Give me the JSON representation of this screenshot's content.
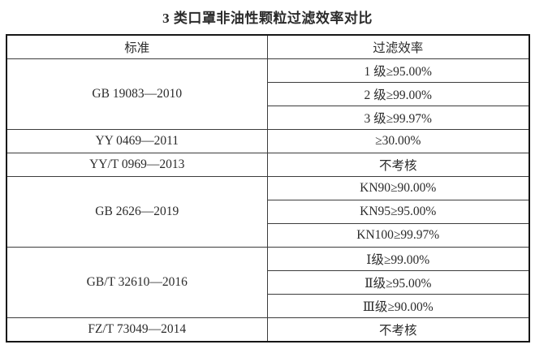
{
  "title": "3 类口罩非油性颗粒过滤效率对比",
  "table": {
    "headers": [
      "标准",
      "过滤效率"
    ],
    "groups": [
      {
        "standard": "GB 19083—2010",
        "values": [
          "1 级≥95.00%",
          "2 级≥99.00%",
          "3 级≥99.97%"
        ]
      },
      {
        "standard": "YY 0469—2011",
        "values": [
          "≥30.00%"
        ]
      },
      {
        "standard": "YY/T 0969—2013",
        "values": [
          "不考核"
        ]
      },
      {
        "standard": "GB 2626—2019",
        "values": [
          "KN90≥90.00%",
          "KN95≥95.00%",
          "KN100≥99.97%"
        ]
      },
      {
        "standard": "GB/T 32610—2016",
        "values": [
          "Ⅰ级≥99.00%",
          "Ⅱ级≥95.00%",
          "Ⅲ级≥90.00%"
        ]
      },
      {
        "standard": "FZ/T 73049—2014",
        "values": [
          "不考核"
        ]
      }
    ]
  },
  "colors": {
    "text": "#2b2b2b",
    "border_outer": "#161616",
    "border_inner": "#3c3c3c",
    "background": "#ffffff"
  }
}
